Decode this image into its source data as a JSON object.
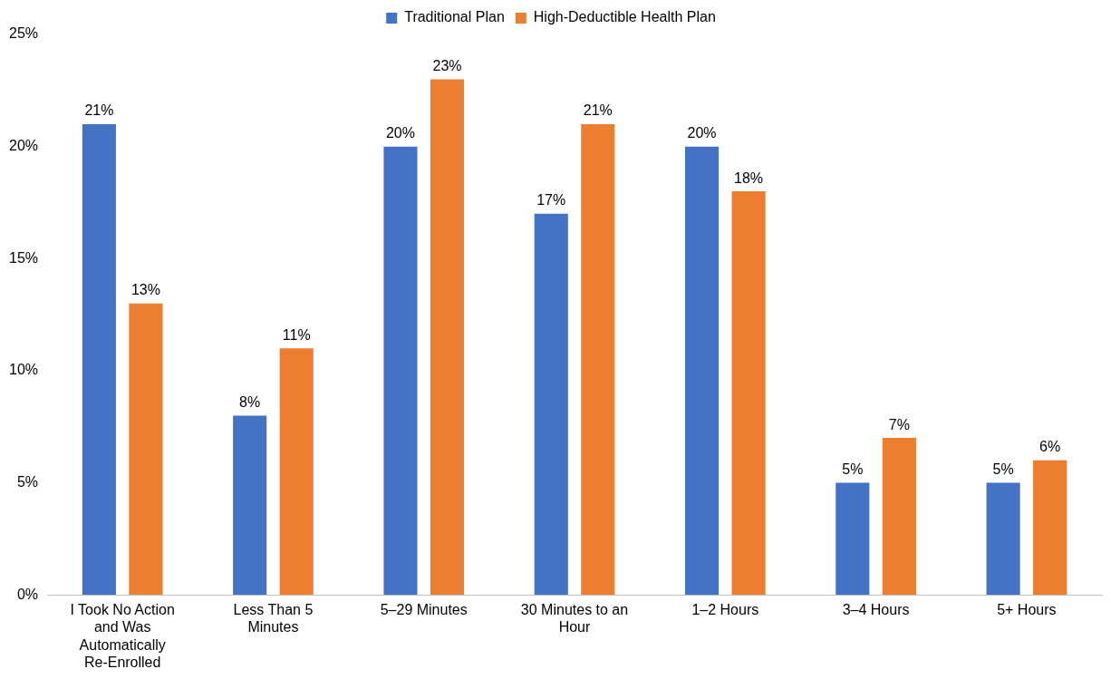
{
  "chart_data": {
    "type": "bar",
    "categories": [
      "I Took No Action and Was Automatically Re-Enrolled",
      "Less Than 5 Minutes",
      "5–29 Minutes",
      "30 Minutes to an Hour",
      "1–2 Hours",
      "3–4 Hours",
      "5+ Hours"
    ],
    "series": [
      {
        "name": "Traditional Plan",
        "color": "#4472c4",
        "values": [
          21,
          8,
          20,
          17,
          20,
          5,
          5
        ],
        "value_labels": [
          "21%",
          "8%",
          "20%",
          "17%",
          "20%",
          "5%",
          "5%"
        ]
      },
      {
        "name": "High-Deductible Health Plan",
        "color": "#ed7d31",
        "values": [
          13,
          11,
          23,
          21,
          18,
          7,
          6
        ],
        "value_labels": [
          "13%",
          "11%",
          "23%",
          "21%",
          "18%",
          "7%",
          "6%"
        ]
      }
    ],
    "ylim": [
      0,
      25
    ],
    "yticks": [
      {
        "value": 0,
        "label": "0%"
      },
      {
        "value": 5,
        "label": "5%"
      },
      {
        "value": 10,
        "label": "10%"
      },
      {
        "value": 15,
        "label": "15%"
      },
      {
        "value": 20,
        "label": "20%"
      },
      {
        "value": 25,
        "label": "25%"
      }
    ],
    "grid": false,
    "legend": "top"
  }
}
